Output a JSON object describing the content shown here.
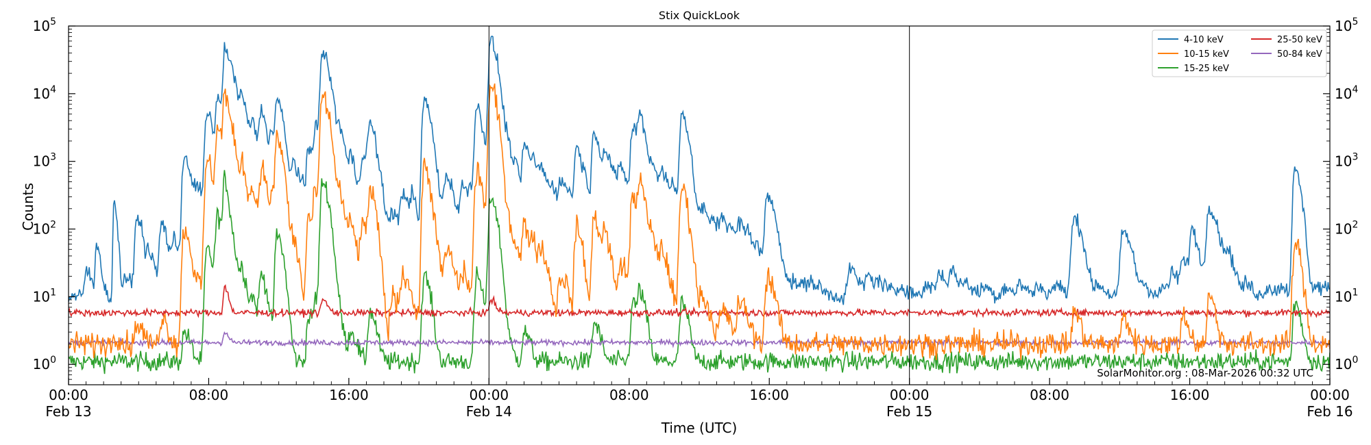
{
  "chart_data": {
    "type": "line",
    "title": "Stix QuickLook",
    "xlabel": "Time (UTC)",
    "ylabel": "Counts",
    "yscale": "log",
    "ylim": [
      0.5,
      100000
    ],
    "xlim_hours": [
      0,
      72
    ],
    "y_ticks": [
      {
        "value": 1,
        "base": "10",
        "exp": "0"
      },
      {
        "value": 10,
        "base": "10",
        "exp": "1"
      },
      {
        "value": 100,
        "base": "10",
        "exp": "2"
      },
      {
        "value": 1000,
        "base": "10",
        "exp": "3"
      },
      {
        "value": 10000,
        "base": "10",
        "exp": "4"
      },
      {
        "value": 100000,
        "base": "10",
        "exp": "5"
      }
    ],
    "x_ticks": [
      {
        "hour": 0,
        "time": "00:00",
        "date": "Feb 13"
      },
      {
        "hour": 8,
        "time": "08:00",
        "date": ""
      },
      {
        "hour": 16,
        "time": "16:00",
        "date": ""
      },
      {
        "hour": 24,
        "time": "00:00",
        "date": "Feb 14"
      },
      {
        "hour": 32,
        "time": "08:00",
        "date": ""
      },
      {
        "hour": 40,
        "time": "16:00",
        "date": ""
      },
      {
        "hour": 48,
        "time": "00:00",
        "date": "Feb 15"
      },
      {
        "hour": 56,
        "time": "08:00",
        "date": ""
      },
      {
        "hour": 64,
        "time": "16:00",
        "date": ""
      },
      {
        "hour": 72,
        "time": "00:00",
        "date": "Feb 16"
      }
    ],
    "day_boundaries_hours": [
      24,
      48
    ],
    "legend_position": "top-right",
    "annotation": "SolarMonitor.org : 08-Mar-2026 00:32 UTC",
    "grid": false,
    "series": [
      {
        "name": "4-10 keV",
        "color": "#1f77b4",
        "baseline": 10,
        "noise": 0.06,
        "flares": [
          [
            1.0,
            25,
            0.25
          ],
          [
            1.6,
            60,
            0.2
          ],
          [
            2.6,
            250,
            0.15
          ],
          [
            3.2,
            20,
            0.3
          ],
          [
            3.9,
            150,
            0.3
          ],
          [
            4.6,
            40,
            0.3
          ],
          [
            5.3,
            120,
            0.3
          ],
          [
            6.0,
            60,
            0.4
          ],
          [
            6.6,
            1200,
            0.3
          ],
          [
            7.3,
            400,
            0.4
          ],
          [
            7.9,
            5000,
            0.3
          ],
          [
            8.5,
            8000,
            0.3
          ],
          [
            8.9,
            50000,
            0.2
          ],
          [
            9.3,
            20000,
            0.3
          ],
          [
            9.9,
            7000,
            0.3
          ],
          [
            10.5,
            3000,
            0.3
          ],
          [
            11.0,
            5000,
            0.3
          ],
          [
            11.6,
            2000,
            0.3
          ],
          [
            11.9,
            7000,
            0.3
          ],
          [
            12.4,
            200,
            0.4
          ],
          [
            12.8,
            900,
            0.3
          ],
          [
            13.3,
            300,
            0.3
          ],
          [
            13.7,
            1500,
            0.3
          ],
          [
            14.1,
            3000,
            0.3
          ],
          [
            14.5,
            40000,
            0.3
          ],
          [
            15.0,
            4000,
            0.4
          ],
          [
            15.5,
            1500,
            0.3
          ],
          [
            16.1,
            1000,
            0.3
          ],
          [
            16.8,
            1200,
            0.4
          ],
          [
            17.2,
            3000,
            0.3
          ],
          [
            17.8,
            200,
            0.4
          ],
          [
            18.5,
            150,
            0.4
          ],
          [
            19.1,
            300,
            0.4
          ],
          [
            19.6,
            200,
            0.3
          ],
          [
            20.3,
            8000,
            0.3
          ],
          [
            20.8,
            400,
            0.5
          ],
          [
            21.6,
            500,
            0.4
          ],
          [
            22.5,
            400,
            0.4
          ],
          [
            23.0,
            300,
            0.4
          ],
          [
            23.3,
            6000,
            0.3
          ],
          [
            23.8,
            200,
            0.4
          ],
          [
            24.1,
            60000,
            0.3
          ],
          [
            24.6,
            2500,
            0.4
          ],
          [
            25.0,
            800,
            0.4
          ],
          [
            25.5,
            400,
            0.4
          ],
          [
            26.0,
            1500,
            0.3
          ],
          [
            26.5,
            800,
            0.4
          ],
          [
            27.0,
            500,
            0.4
          ],
          [
            27.6,
            300,
            0.4
          ],
          [
            28.1,
            400,
            0.4
          ],
          [
            28.6,
            200,
            0.4
          ],
          [
            29.0,
            1500,
            0.3
          ],
          [
            29.6,
            300,
            0.5
          ],
          [
            30.0,
            2500,
            0.3
          ],
          [
            30.6,
            1200,
            0.3
          ],
          [
            31.0,
            400,
            0.4
          ],
          [
            31.5,
            700,
            0.4
          ],
          [
            32.2,
            3000,
            0.3
          ],
          [
            32.6,
            4000,
            0.3
          ],
          [
            33.3,
            800,
            0.4
          ],
          [
            33.9,
            500,
            0.4
          ],
          [
            34.5,
            300,
            0.4
          ],
          [
            35.0,
            5000,
            0.3
          ],
          [
            35.6,
            200,
            0.4
          ],
          [
            36.2,
            150,
            0.4
          ],
          [
            36.8,
            100,
            0.4
          ],
          [
            37.3,
            120,
            0.4
          ],
          [
            37.8,
            60,
            0.4
          ],
          [
            38.3,
            100,
            0.4
          ],
          [
            38.8,
            50,
            0.4
          ],
          [
            39.3,
            40,
            0.5
          ],
          [
            39.9,
            300,
            0.35
          ],
          [
            40.6,
            25,
            0.4
          ],
          [
            41.5,
            15,
            0.6
          ],
          [
            42.3,
            15,
            0.6
          ],
          [
            44.6,
            25,
            0.4
          ],
          [
            45.6,
            20,
            0.4
          ],
          [
            46.3,
            15,
            0.5
          ],
          [
            47.5,
            14,
            0.5
          ],
          [
            49.0,
            15,
            0.5
          ],
          [
            49.7,
            20,
            0.4
          ],
          [
            50.4,
            22,
            0.4
          ],
          [
            51.2,
            15,
            0.4
          ],
          [
            52.2,
            14,
            0.4
          ],
          [
            53.4,
            14,
            0.4
          ],
          [
            54.3,
            15,
            0.4
          ],
          [
            55.3,
            14,
            0.4
          ],
          [
            56.3,
            15,
            0.4
          ],
          [
            57.4,
            140,
            0.4
          ],
          [
            58.7,
            15,
            0.4
          ],
          [
            60.2,
            90,
            0.4
          ],
          [
            61.3,
            15,
            0.4
          ],
          [
            62.5,
            14,
            0.4
          ],
          [
            63.0,
            20,
            0.4
          ],
          [
            63.6,
            30,
            0.4
          ],
          [
            64.1,
            90,
            0.3
          ],
          [
            64.6,
            20,
            0.3
          ],
          [
            65.1,
            220,
            0.35
          ],
          [
            65.6,
            35,
            0.4
          ],
          [
            66.1,
            40,
            0.4
          ],
          [
            67.2,
            15,
            0.4
          ],
          [
            68.4,
            14,
            0.4
          ],
          [
            69.2,
            14,
            0.4
          ],
          [
            70.0,
            700,
            0.3
          ],
          [
            71.2,
            14,
            0.4
          ],
          [
            71.7,
            12,
            0.4
          ]
        ]
      },
      {
        "name": "10-15 keV",
        "color": "#ff7f0e",
        "baseline": 2,
        "noise": 0.09,
        "flares": [
          [
            2.6,
            3,
            0.2
          ],
          [
            3.9,
            4,
            0.3
          ],
          [
            5.3,
            5,
            0.3
          ],
          [
            6.6,
            100,
            0.3
          ],
          [
            7.3,
            15,
            0.4
          ],
          [
            7.9,
            1000,
            0.3
          ],
          [
            8.5,
            3000,
            0.3
          ],
          [
            8.9,
            10000,
            0.2
          ],
          [
            9.3,
            2000,
            0.3
          ],
          [
            9.9,
            700,
            0.3
          ],
          [
            10.5,
            300,
            0.3
          ],
          [
            11.0,
            700,
            0.3
          ],
          [
            11.6,
            200,
            0.3
          ],
          [
            11.9,
            2000,
            0.3
          ],
          [
            12.8,
            60,
            0.3
          ],
          [
            13.7,
            150,
            0.3
          ],
          [
            14.1,
            300,
            0.3
          ],
          [
            14.5,
            9000,
            0.3
          ],
          [
            15.0,
            400,
            0.4
          ],
          [
            15.5,
            150,
            0.3
          ],
          [
            16.1,
            100,
            0.3
          ],
          [
            16.8,
            100,
            0.4
          ],
          [
            17.2,
            300,
            0.3
          ],
          [
            18.5,
            10,
            0.4
          ],
          [
            19.1,
            20,
            0.4
          ],
          [
            20.3,
            800,
            0.3
          ],
          [
            20.8,
            30,
            0.5
          ],
          [
            21.6,
            40,
            0.4
          ],
          [
            22.5,
            20,
            0.4
          ],
          [
            23.3,
            700,
            0.3
          ],
          [
            24.1,
            12000,
            0.3
          ],
          [
            24.6,
            200,
            0.4
          ],
          [
            25.0,
            50,
            0.4
          ],
          [
            25.5,
            30,
            0.4
          ],
          [
            26.0,
            100,
            0.3
          ],
          [
            26.5,
            50,
            0.4
          ],
          [
            27.0,
            30,
            0.4
          ],
          [
            28.1,
            20,
            0.4
          ],
          [
            29.0,
            100,
            0.3
          ],
          [
            30.0,
            150,
            0.3
          ],
          [
            30.6,
            80,
            0.3
          ],
          [
            31.5,
            30,
            0.4
          ],
          [
            32.2,
            300,
            0.3
          ],
          [
            32.6,
            400,
            0.3
          ],
          [
            33.3,
            60,
            0.4
          ],
          [
            33.9,
            30,
            0.4
          ],
          [
            35.0,
            400,
            0.3
          ],
          [
            35.6,
            10,
            0.4
          ],
          [
            36.2,
            8,
            0.4
          ],
          [
            37.3,
            6,
            0.4
          ],
          [
            38.3,
            8,
            0.4
          ],
          [
            39.9,
            20,
            0.35
          ],
          [
            57.4,
            6,
            0.3
          ],
          [
            60.2,
            5,
            0.3
          ],
          [
            63.6,
            5,
            0.3
          ],
          [
            65.1,
            10,
            0.3
          ],
          [
            70.0,
            60,
            0.3
          ]
        ]
      },
      {
        "name": "15-25 keV",
        "color": "#2ca02c",
        "baseline": 1.1,
        "noise": 0.07,
        "flares": [
          [
            6.6,
            3,
            0.3
          ],
          [
            7.9,
            50,
            0.3
          ],
          [
            8.5,
            150,
            0.3
          ],
          [
            8.9,
            500,
            0.2
          ],
          [
            9.3,
            60,
            0.3
          ],
          [
            9.9,
            20,
            0.3
          ],
          [
            10.5,
            8,
            0.3
          ],
          [
            11.0,
            20,
            0.3
          ],
          [
            11.9,
            80,
            0.3
          ],
          [
            13.7,
            5,
            0.3
          ],
          [
            14.1,
            8,
            0.3
          ],
          [
            14.5,
            500,
            0.3
          ],
          [
            15.0,
            10,
            0.4
          ],
          [
            16.1,
            3,
            0.3
          ],
          [
            17.2,
            6,
            0.3
          ],
          [
            20.3,
            20,
            0.3
          ],
          [
            23.3,
            20,
            0.3
          ],
          [
            24.1,
            300,
            0.3
          ],
          [
            24.6,
            4,
            0.4
          ],
          [
            26.0,
            3,
            0.3
          ],
          [
            30.0,
            4,
            0.3
          ],
          [
            32.2,
            8,
            0.3
          ],
          [
            32.6,
            10,
            0.3
          ],
          [
            35.0,
            8,
            0.3
          ],
          [
            70.0,
            8,
            0.3
          ]
        ]
      },
      {
        "name": "25-50 keV",
        "color": "#d62728",
        "baseline": 5.8,
        "noise": 0.025,
        "flares": [
          [
            8.9,
            14,
            0.2
          ],
          [
            14.5,
            9,
            0.25
          ],
          [
            24.1,
            9,
            0.25
          ]
        ]
      },
      {
        "name": "50-84 keV",
        "color": "#9467bd",
        "baseline": 2.1,
        "noise": 0.02,
        "flares": [
          [
            8.9,
            3,
            0.2
          ]
        ]
      }
    ]
  }
}
